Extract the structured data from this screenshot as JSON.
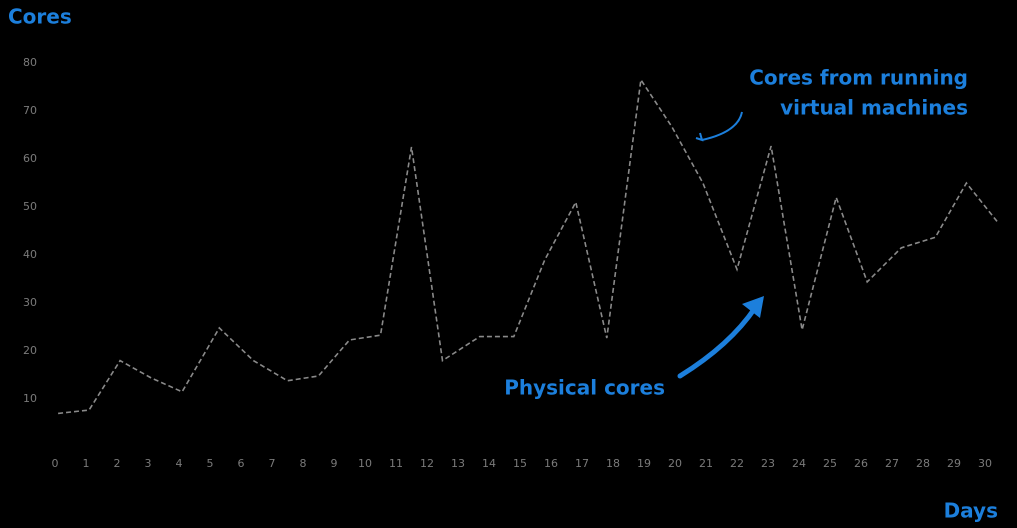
{
  "chart_data": {
    "type": "line",
    "y_label": "Cores",
    "x_label": "Days",
    "annotations": [
      {
        "lines": [
          "Cores from running",
          "virtual machines"
        ]
      },
      {
        "lines": [
          "Physical cores"
        ]
      }
    ],
    "x": [
      0.1,
      1.1,
      2.1,
      3.1,
      4.1,
      5.3,
      6.4,
      7.5,
      8.5,
      9.5,
      10.5,
      11.5,
      12.5,
      13.7,
      14.8,
      15.8,
      16.8,
      17.8,
      18.9,
      19.9,
      20.9,
      22.0,
      23.1,
      24.1,
      25.2,
      26.2,
      27.3,
      28.4,
      29.4,
      30.4
    ],
    "values": [
      7,
      7.7,
      18,
      14.4,
      11.5,
      24.8,
      18,
      13.8,
      14.8,
      22.3,
      23.3,
      62.5,
      18,
      23,
      23,
      39,
      51,
      22.7,
      76.5,
      66.7,
      55,
      37,
      62.7,
      24.4,
      52,
      34.4,
      41.5,
      43.7,
      55,
      46.9
    ],
    "color": "#8a8a8a",
    "dashed": true,
    "xlim": [
      0,
      30.5
    ],
    "xticks": [
      0,
      1,
      2,
      3,
      4,
      5,
      6,
      7,
      8,
      9,
      10,
      11,
      12,
      13,
      14,
      15,
      16,
      17,
      18,
      19,
      20,
      21,
      22,
      23,
      24,
      25,
      26,
      27,
      28,
      29,
      30
    ],
    "ylim": [
      0,
      80
    ],
    "yticks": [
      10,
      20,
      30,
      40,
      50,
      60,
      70,
      80
    ],
    "grid": false
  }
}
